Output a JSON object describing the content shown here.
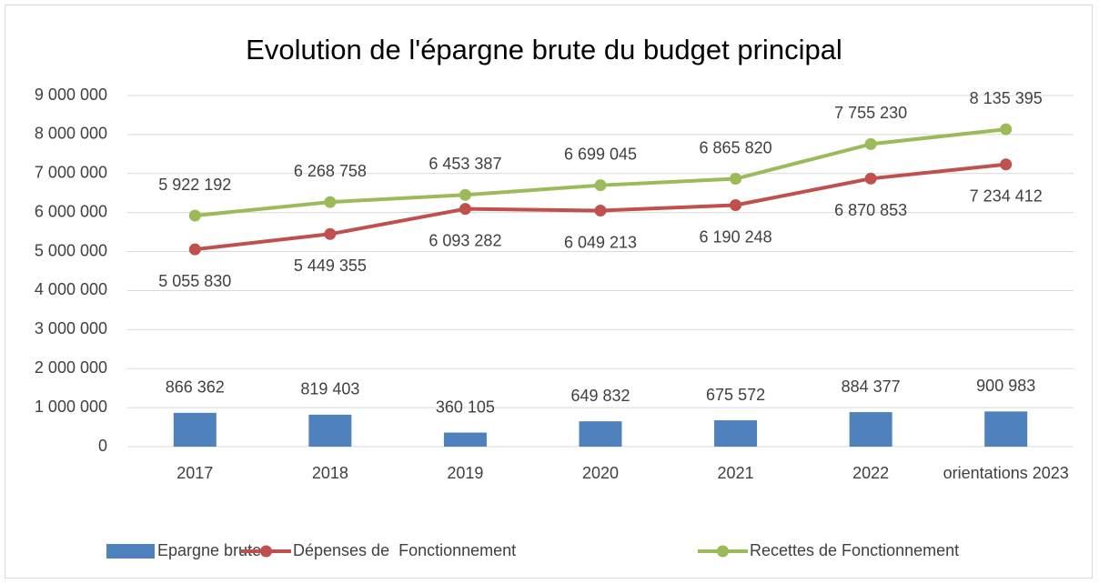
{
  "chart_data": {
    "type": "bar_line",
    "title": "Evolution de l'épargne brute du budget principal",
    "categories": [
      "2017",
      "2018",
      "2019",
      "2020",
      "2021",
      "2022",
      "orientations 2023"
    ],
    "series": [
      {
        "name": "Epargne brute",
        "type": "bar",
        "color": "#4f81bd",
        "values": [
          866362,
          819403,
          360105,
          649832,
          675572,
          884377,
          900983
        ],
        "value_labels": [
          "866 362",
          "819 403",
          "360 105",
          "649 832",
          "675 572",
          "884 377",
          "900 983"
        ]
      },
      {
        "name": "Dépenses de  Fonctionnement",
        "type": "line",
        "color": "#c0504d",
        "values": [
          5055830,
          5449355,
          6093282,
          6049213,
          6190248,
          6870853,
          7234412
        ],
        "value_labels": [
          "5 055 830",
          "5 449 355",
          "6 093 282",
          "6 049 213",
          "6 190 248",
          "6 870 853",
          "7 234 412"
        ]
      },
      {
        "name": "Recettes de Fonctionnement",
        "type": "line",
        "color": "#9bbb59",
        "values": [
          5922192,
          6268758,
          6453387,
          6699045,
          6865820,
          7755230,
          8135395
        ],
        "value_labels": [
          "5 922 192",
          "6 268 758",
          "6 453 387",
          "6 699 045",
          "6 865 820",
          "7 755 230",
          "8 135 395"
        ]
      }
    ],
    "ylim": [
      0,
      9000000
    ],
    "yticks": [
      0,
      {
        "value": 1000000,
        "label": "1 000 000"
      },
      {
        "value": 2000000,
        "label": "2 000 000"
      },
      {
        "value": 3000000,
        "label": "3 000 000"
      },
      {
        "value": 4000000,
        "label": "4 000 000"
      },
      {
        "value": 5000000,
        "label": "5 000 000"
      },
      {
        "value": 6000000,
        "label": "6 000 000"
      },
      {
        "value": 7000000,
        "label": "7 000 000"
      },
      {
        "value": 8000000,
        "label": "8 000 000"
      },
      {
        "value": 9000000,
        "label": "9 000 000"
      }
    ],
    "grid": true,
    "legend": "bottom"
  }
}
